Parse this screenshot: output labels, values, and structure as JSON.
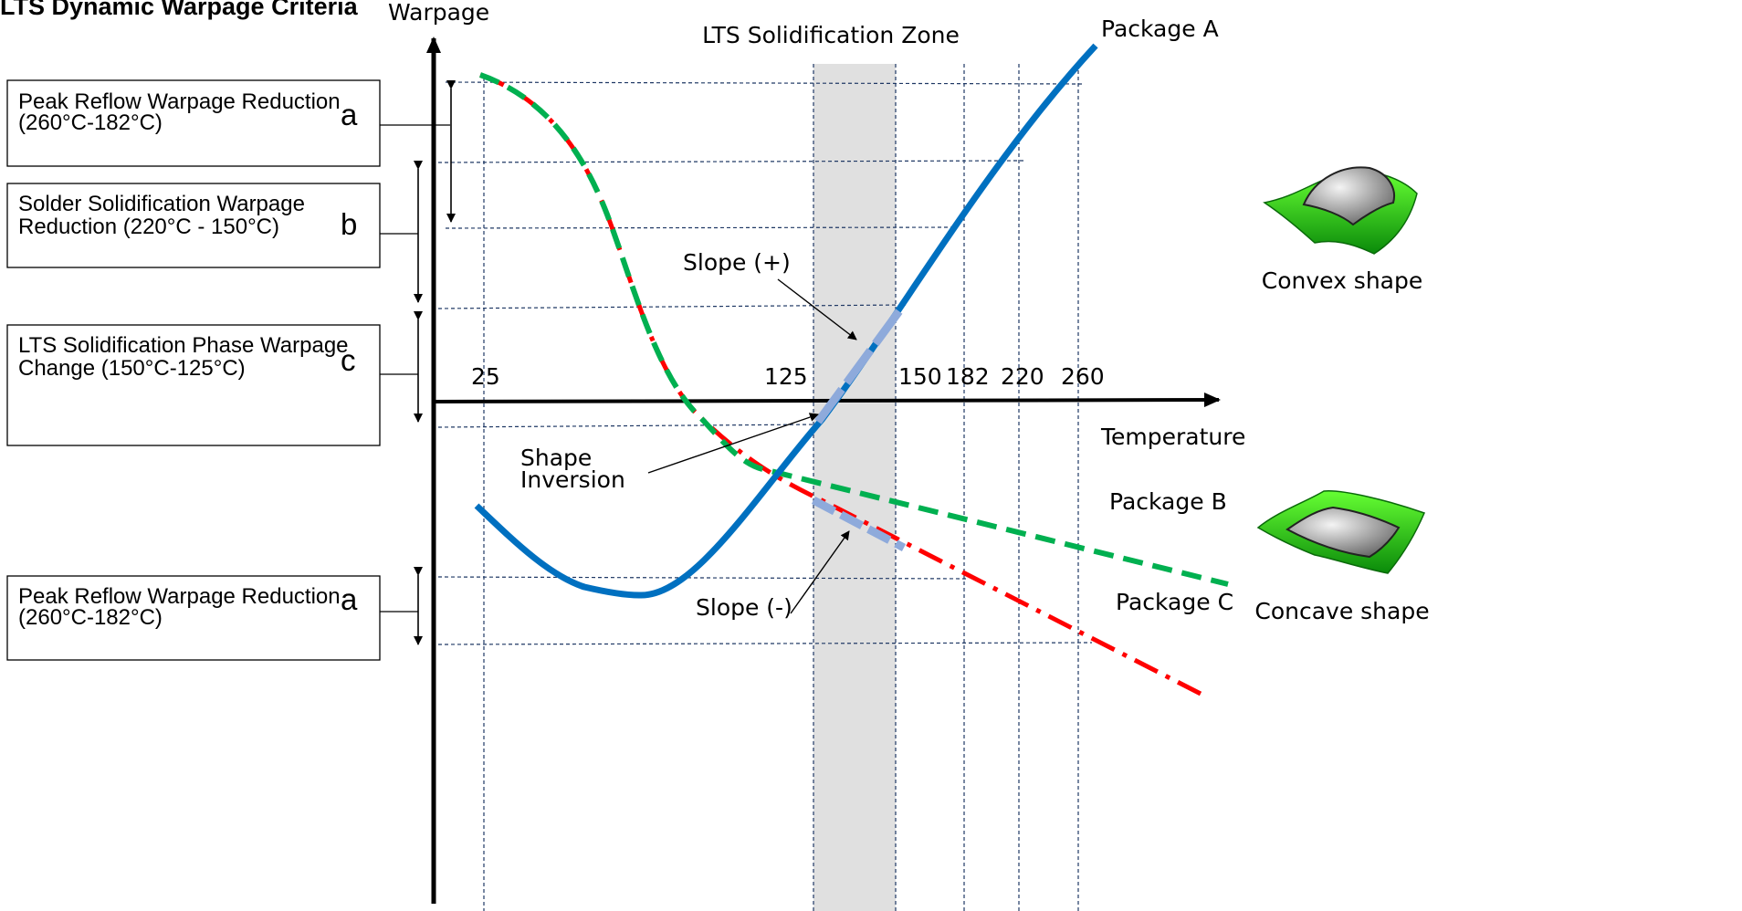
{
  "title": "LTS Dynamic Warpage Criteria",
  "axes": {
    "y_label": "Warpage",
    "x_label": "Temperature",
    "tick_labels": [
      "25",
      "125",
      "150",
      "182",
      "220",
      "260"
    ]
  },
  "zone_label": "LTS Solidification Zone",
  "criteria_boxes": [
    {
      "line1": "Peak Reflow Warpage Reduction",
      "line2": "(260°C-182°C)",
      "letter": "a"
    },
    {
      "line1": "Solder Solidification Warpage",
      "line2": "Reduction (220°C - 150°C)",
      "letter": "b"
    },
    {
      "line1": "LTS Solidification Phase Warpage",
      "line2": "Change (150°C-125°C)",
      "letter": "c"
    },
    {
      "line1": "Peak Reflow Warpage Reduction",
      "line2": "(260°C-182°C)",
      "letter": "a"
    }
  ],
  "curves": [
    {
      "name": "Package A",
      "color": "#0070c0",
      "style": "solid"
    },
    {
      "name": "Package B",
      "color": "#00b050",
      "style": "dashed"
    },
    {
      "name": "Package C",
      "color": "#ff0000",
      "style": "dash-dot"
    }
  ],
  "annotations": {
    "slope_pos": "Slope (+)",
    "slope_neg": "Slope (-)",
    "inversion_line1": "Shape",
    "inversion_line2": "Inversion"
  },
  "shapes": {
    "convex_label": "Convex shape",
    "concave_label": "Concave shape"
  },
  "colors": {
    "zone_fill": "#e0e0e0",
    "slope_highlight": "#8eaadb",
    "grid": "#1f3864"
  }
}
